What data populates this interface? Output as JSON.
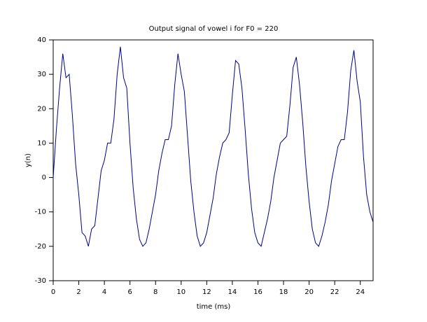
{
  "chart_data": {
    "type": "line",
    "title": "Output signal of vowel i for F0 = 220",
    "x_label": "time (ms)",
    "y_label": "y(n)",
    "x": [
      0,
      0.25,
      0.5,
      0.75,
      1,
      1.25,
      1.5,
      1.75,
      2,
      2.25,
      2.5,
      2.75,
      3,
      3.25,
      3.5,
      3.75,
      4,
      4.25,
      4.5,
      4.75,
      5,
      5.25,
      5.5,
      5.75,
      6,
      6.25,
      6.5,
      6.75,
      7,
      7.25,
      7.5,
      7.75,
      8,
      8.25,
      8.5,
      8.75,
      9,
      9.25,
      9.5,
      9.75,
      10,
      10.25,
      10.5,
      10.75,
      11,
      11.25,
      11.5,
      11.75,
      12,
      12.25,
      12.5,
      12.75,
      13,
      13.25,
      13.5,
      13.75,
      14,
      14.25,
      14.5,
      14.75,
      15,
      15.25,
      15.5,
      15.75,
      16,
      16.25,
      16.5,
      16.75,
      17,
      17.25,
      17.5,
      17.75,
      18,
      18.25,
      18.5,
      18.75,
      19,
      19.25,
      19.5,
      19.75,
      20,
      20.25,
      20.5,
      20.75,
      21,
      21.25,
      21.5,
      21.75,
      22,
      22.25,
      22.5,
      22.75,
      23,
      23.25,
      23.5,
      23.75,
      24,
      24.25,
      24.5,
      24.75,
      25
    ],
    "series": [
      {
        "color": "#00008b",
        "values": [
          0,
          14,
          26,
          36,
          29,
          30,
          18,
          4,
          -5,
          -16,
          -17,
          -20,
          -15,
          -14,
          -6,
          2,
          5,
          10,
          10,
          17,
          30,
          38,
          29,
          26,
          10,
          -3,
          -12,
          -18,
          -20,
          -19,
          -15,
          -10,
          -5,
          2,
          7,
          11,
          11,
          15,
          27,
          36,
          30,
          25,
          12,
          -1,
          -10,
          -17,
          -20,
          -19,
          -16,
          -11,
          -6,
          1,
          6,
          10,
          11,
          13,
          24,
          34,
          33,
          26,
          14,
          1,
          -9,
          -16,
          -19,
          -20,
          -16,
          -12,
          -7,
          0,
          5,
          10,
          11,
          12,
          21,
          32,
          35,
          27,
          16,
          3,
          -7,
          -15,
          -19,
          -20,
          -17,
          -13,
          -8,
          -1,
          4,
          9,
          11,
          11,
          19,
          31,
          37,
          28,
          22,
          6,
          -5,
          -10,
          -13
        ]
      }
    ],
    "xlim": [
      0,
      25
    ],
    "ylim": [
      -30,
      40
    ],
    "xticks": [
      0,
      2,
      4,
      6,
      8,
      10,
      12,
      14,
      16,
      18,
      20,
      22,
      24
    ],
    "yticks": [
      -30,
      -20,
      -10,
      0,
      10,
      20,
      30,
      40
    ]
  }
}
